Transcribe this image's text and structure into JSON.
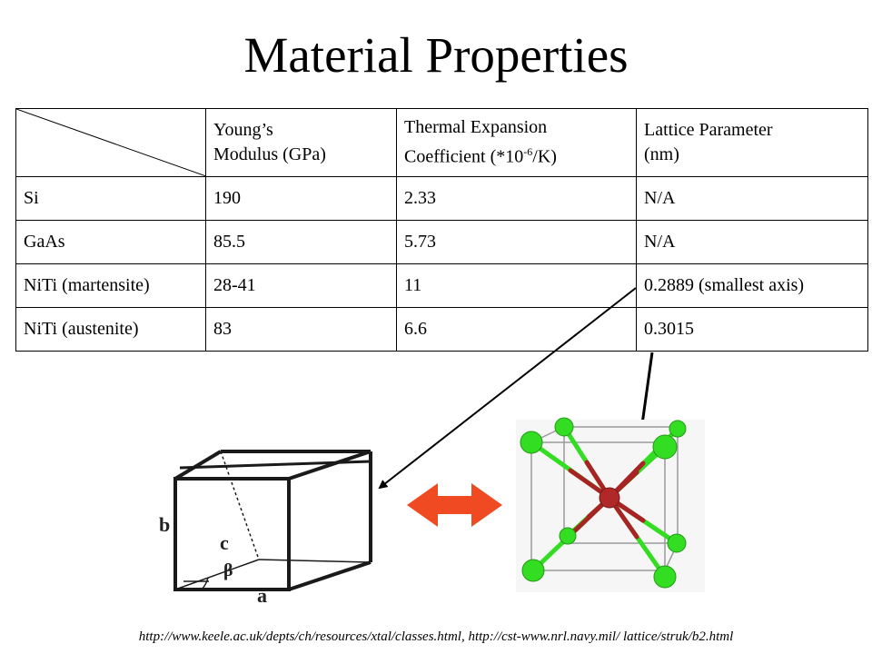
{
  "title": "Material Properties",
  "table": {
    "headers": [
      {
        "line1": "Young’s",
        "line2": "Modulus (GPa)"
      },
      {
        "line1": "Thermal Expansion",
        "line2_pre": "Coefficient (*10",
        "line2_sup": "-6",
        "line2_post": "/K)"
      },
      {
        "line1": "Lattice Parameter",
        "line2": "(nm)"
      }
    ],
    "rows": [
      {
        "material": "Si",
        "modulus": "190",
        "thermal": "2.33",
        "lattice": "N/A"
      },
      {
        "material": "GaAs",
        "modulus": "85.5",
        "thermal": "5.73",
        "lattice": "N/A"
      },
      {
        "material": "NiTi (martensite)",
        "modulus": "28-41",
        "thermal": "11",
        "lattice": "0.2889 (smallest axis)"
      },
      {
        "material": "NiTi (austenite)",
        "modulus": "83",
        "thermal": "6.6",
        "lattice": "0.3015"
      }
    ]
  },
  "diagram_labels": {
    "b": "b",
    "c": "c",
    "beta": "β",
    "a": "a"
  },
  "colors": {
    "double_arrow": "#f04a22",
    "atom_green": "#33dd22",
    "atom_red": "#b02828"
  },
  "caption": "http://www.keele.ac.uk/depts/ch/resources/xtal/classes.html, http://cst-www.nrl.navy.mil/ lattice/struk/b2.html"
}
